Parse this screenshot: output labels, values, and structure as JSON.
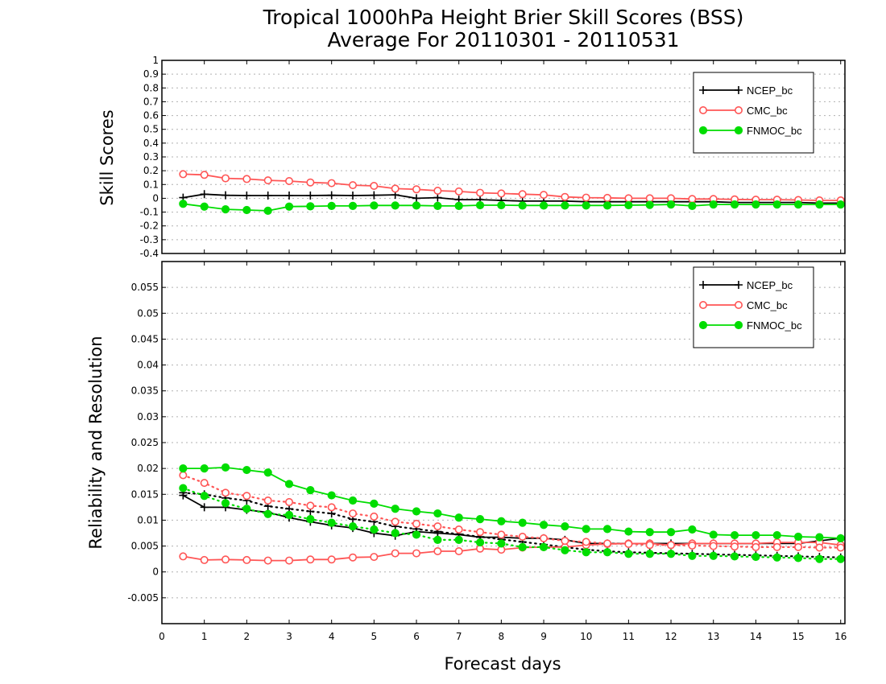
{
  "chart_data": [
    {
      "type": "line",
      "title": "Tropical 1000hPa Height Brier Skill Scores (BSS)",
      "subtitle": "Average For 20110301 - 20110531",
      "ylabel": "Skill Scores",
      "xlabel": "Forecast days",
      "xlim": [
        0,
        16.1
      ],
      "ylim": [
        -0.4,
        1
      ],
      "yticks": [
        "-0.4",
        "-0.3",
        "-0.2",
        "-0.1",
        "0",
        "0.1",
        "0.2",
        "0.3",
        "0.4",
        "0.5",
        "0.6",
        "0.7",
        "0.8",
        "0.9",
        "1"
      ],
      "grid": true,
      "legend": "top-right",
      "x": [
        0.5,
        1,
        1.5,
        2,
        2.5,
        3,
        3.5,
        4,
        4.5,
        5,
        5.5,
        6,
        6.5,
        7,
        7.5,
        8,
        8.5,
        9,
        9.5,
        10,
        10.5,
        11,
        11.5,
        12,
        12.5,
        13,
        13.5,
        14,
        14.5,
        15,
        15.5,
        16
      ],
      "series": [
        {
          "name": "NCEP_bc",
          "color": "#000000",
          "marker": "plus",
          "values": [
            0.005,
            0.03,
            0.022,
            0.02,
            0.02,
            0.02,
            0.02,
            0.022,
            0.02,
            0.022,
            0.025,
            0.0,
            0.005,
            -0.01,
            -0.01,
            -0.015,
            -0.02,
            -0.02,
            -0.02,
            -0.025,
            -0.025,
            -0.025,
            -0.025,
            -0.025,
            -0.025,
            -0.025,
            -0.03,
            -0.03,
            -0.03,
            -0.03,
            -0.035,
            -0.035
          ]
        },
        {
          "name": "CMC_bc",
          "color": "#ff5555",
          "marker": "open-circle",
          "values": [
            0.175,
            0.17,
            0.145,
            0.14,
            0.13,
            0.125,
            0.115,
            0.11,
            0.095,
            0.09,
            0.07,
            0.065,
            0.055,
            0.05,
            0.04,
            0.035,
            0.03,
            0.025,
            0.01,
            0.005,
            0.003,
            0.0,
            0.0,
            0.0,
            -0.005,
            -0.005,
            -0.008,
            -0.01,
            -0.01,
            -0.012,
            -0.015,
            -0.015
          ]
        },
        {
          "name": "FNMOC_bc",
          "color": "#00dd00",
          "marker": "filled-circle",
          "values": [
            -0.04,
            -0.06,
            -0.08,
            -0.085,
            -0.09,
            -0.06,
            -0.058,
            -0.055,
            -0.055,
            -0.052,
            -0.052,
            -0.052,
            -0.055,
            -0.055,
            -0.05,
            -0.05,
            -0.052,
            -0.052,
            -0.052,
            -0.052,
            -0.052,
            -0.05,
            -0.048,
            -0.045,
            -0.055,
            -0.045,
            -0.045,
            -0.045,
            -0.045,
            -0.045,
            -0.045,
            -0.045
          ]
        }
      ]
    },
    {
      "type": "line",
      "ylabel": "Reliability and Resolution",
      "xlabel": "Forecast days",
      "xlim": [
        0,
        16.1
      ],
      "ylim": [
        -0.01,
        0.06
      ],
      "xticks": [
        "0",
        "1",
        "2",
        "3",
        "4",
        "5",
        "6",
        "7",
        "8",
        "9",
        "10",
        "11",
        "12",
        "13",
        "14",
        "15",
        "16"
      ],
      "yticks": [
        "-0.005",
        "0",
        "0.005",
        "0.01",
        "0.015",
        "0.02",
        "0.025",
        "0.03",
        "0.035",
        "0.04",
        "0.045",
        "0.05",
        "0.055"
      ],
      "grid": true,
      "legend": "top-right",
      "x": [
        0.5,
        1,
        1.5,
        2,
        2.5,
        3,
        3.5,
        4,
        4.5,
        5,
        5.5,
        6,
        6.5,
        7,
        7.5,
        8,
        8.5,
        9,
        9.5,
        10,
        10.5,
        11,
        11.5,
        12,
        12.5,
        13,
        13.5,
        14,
        14.5,
        15,
        15.5,
        16
      ],
      "legend_entries": [
        {
          "name": "NCEP_bc",
          "color": "#000000",
          "marker": "plus"
        },
        {
          "name": "CMC_bc",
          "color": "#ff5555",
          "marker": "open-circle"
        },
        {
          "name": "FNMOC_bc",
          "color": "#00dd00",
          "marker": "filled-circle"
        }
      ],
      "series": [
        {
          "name": "NCEP_bc",
          "color": "#000000",
          "marker": "plus",
          "style": "solid",
          "values": [
            0.0148,
            0.0125,
            0.0125,
            0.012,
            0.0115,
            0.0105,
            0.0097,
            0.009,
            0.0085,
            0.0075,
            0.007,
            0.0078,
            0.0075,
            0.0072,
            0.0067,
            0.0067,
            0.0065,
            0.0065,
            0.0062,
            0.0055,
            0.0055,
            0.0055,
            0.0055,
            0.0055,
            0.0055,
            0.0055,
            0.0055,
            0.0055,
            0.0055,
            0.0055,
            0.006,
            0.0065
          ]
        },
        {
          "name": "NCEP_bc",
          "color": "#000000",
          "marker": "plus",
          "style": "dotted",
          "values": [
            0.0153,
            0.015,
            0.0143,
            0.0138,
            0.0127,
            0.0122,
            0.0117,
            0.0113,
            0.0102,
            0.0097,
            0.0088,
            0.0083,
            0.0078,
            0.0073,
            0.0068,
            0.0063,
            0.0058,
            0.0053,
            0.0048,
            0.0043,
            0.004,
            0.0038,
            0.0037,
            0.0036,
            0.0035,
            0.0034,
            0.0033,
            0.0032,
            0.0031,
            0.003,
            0.0029,
            0.0028
          ]
        },
        {
          "name": "CMC_bc",
          "color": "#ff5555",
          "marker": "open-circle",
          "style": "solid",
          "values": [
            0.003,
            0.0023,
            0.0024,
            0.0023,
            0.0022,
            0.0022,
            0.0024,
            0.0024,
            0.0028,
            0.0029,
            0.0036,
            0.0036,
            0.004,
            0.004,
            0.0045,
            0.0043,
            0.0047,
            0.0048,
            0.0048,
            0.0052,
            0.0054,
            0.0055,
            0.0055,
            0.0052,
            0.0055,
            0.0055,
            0.0055,
            0.0055,
            0.0057,
            0.0057,
            0.0057,
            0.0052
          ]
        },
        {
          "name": "CMC_bc",
          "color": "#ff5555",
          "marker": "open-circle",
          "style": "dotted",
          "values": [
            0.0187,
            0.0172,
            0.0153,
            0.0147,
            0.0138,
            0.0135,
            0.0128,
            0.0125,
            0.0113,
            0.0107,
            0.0097,
            0.0093,
            0.0088,
            0.0082,
            0.0077,
            0.0072,
            0.0068,
            0.0065,
            0.006,
            0.0058,
            0.0055,
            0.0054,
            0.0052,
            0.0052,
            0.0051,
            0.005,
            0.0049,
            0.0048,
            0.0048,
            0.0048,
            0.0047,
            0.0047
          ]
        },
        {
          "name": "FNMOC_bc",
          "color": "#00dd00",
          "marker": "filled-circle",
          "style": "solid",
          "values": [
            0.02,
            0.02,
            0.0202,
            0.0197,
            0.0192,
            0.017,
            0.0158,
            0.0148,
            0.0138,
            0.0132,
            0.0122,
            0.0117,
            0.0113,
            0.0105,
            0.0102,
            0.0098,
            0.0095,
            0.0091,
            0.0088,
            0.0083,
            0.0083,
            0.0078,
            0.0077,
            0.0077,
            0.0082,
            0.0072,
            0.0071,
            0.0071,
            0.0071,
            0.0068,
            0.0067,
            0.0065
          ]
        },
        {
          "name": "FNMOC_bc",
          "color": "#00dd00",
          "marker": "filled-circle",
          "style": "dotted",
          "values": [
            0.0162,
            0.0147,
            0.0133,
            0.0122,
            0.0112,
            0.011,
            0.0102,
            0.0095,
            0.0088,
            0.0082,
            0.0075,
            0.0072,
            0.0062,
            0.0062,
            0.0057,
            0.0055,
            0.0048,
            0.0048,
            0.0042,
            0.0038,
            0.0038,
            0.0035,
            0.0035,
            0.0035,
            0.0031,
            0.0031,
            0.003,
            0.0029,
            0.0028,
            0.0027,
            0.0025,
            0.0025
          ]
        }
      ]
    }
  ]
}
